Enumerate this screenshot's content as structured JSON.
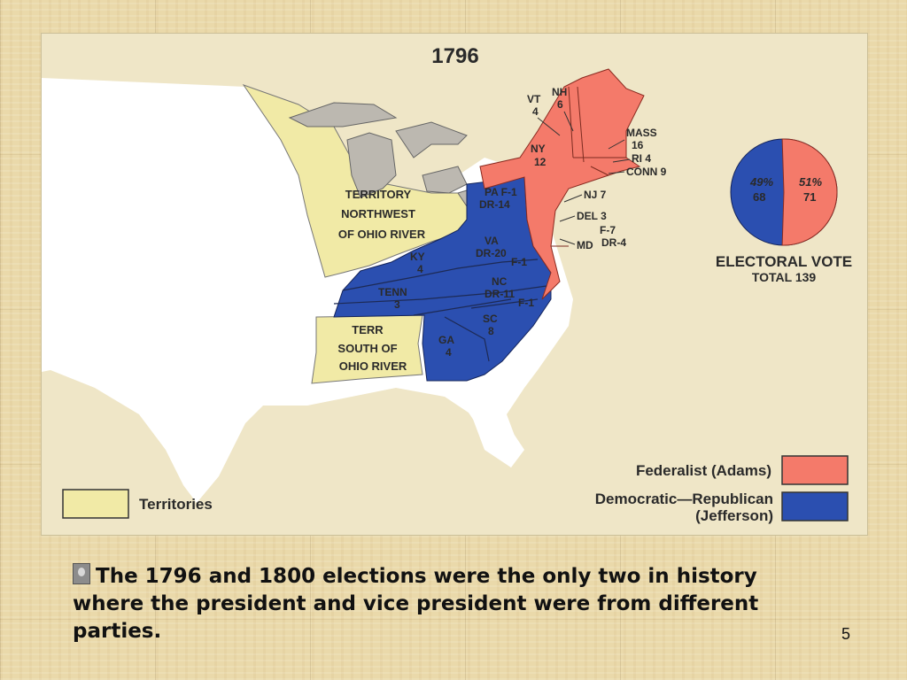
{
  "map": {
    "title": "1796",
    "region_labels": {
      "nw_territory": [
        "TERRITORY",
        "NORTHWEST",
        "OF OHIO RIVER"
      ],
      "sw_territory": [
        "TERR",
        "SOUTH OF",
        "OHIO RIVER"
      ]
    },
    "state_labels": {
      "vt": [
        "VT",
        "4"
      ],
      "nh": [
        "NH",
        "6"
      ],
      "ny": [
        "NY",
        "12"
      ],
      "mass": [
        "MASS",
        "16"
      ],
      "ri": "RI 4",
      "conn": "CONN 9",
      "nj": "NJ 7",
      "del": "DEL 3",
      "md": "MD",
      "md_split": [
        "F-7",
        "DR-4"
      ],
      "pa": [
        "PA  F-1",
        "DR-14"
      ],
      "va": [
        "VA",
        "DR-20",
        "F-1"
      ],
      "ky": [
        "KY",
        "4"
      ],
      "tenn": [
        "TENN",
        "3"
      ],
      "nc": [
        "NC",
        "DR-11",
        "F-1"
      ],
      "sc": [
        "SC",
        "8"
      ],
      "ga": [
        "GA",
        "4"
      ]
    },
    "pie": {
      "republican_pct": "49%",
      "republican_votes": "68",
      "federalist_pct": "51%",
      "federalist_votes": "71",
      "federalist_fraction": 0.51,
      "title": "ELECTORAL VOTE",
      "total": "TOTAL 139"
    },
    "legend": {
      "federalist": "Federalist (Adams)",
      "republican_line1": "Democratic—Republican",
      "republican_line2": "(Jefferson)",
      "territories": "Territories"
    },
    "colors": {
      "federalist": "#f47a6a",
      "republican": "#2b4fb0",
      "territory": "#f1eaa6",
      "lakes": "#bcb8b0",
      "land": "#ffffff",
      "panel": "#efe6c7"
    }
  },
  "caption": {
    "text": "The 1796 and 1800 elections were the only two in history where the president and vice president were from different parties."
  },
  "slide_number": "5"
}
